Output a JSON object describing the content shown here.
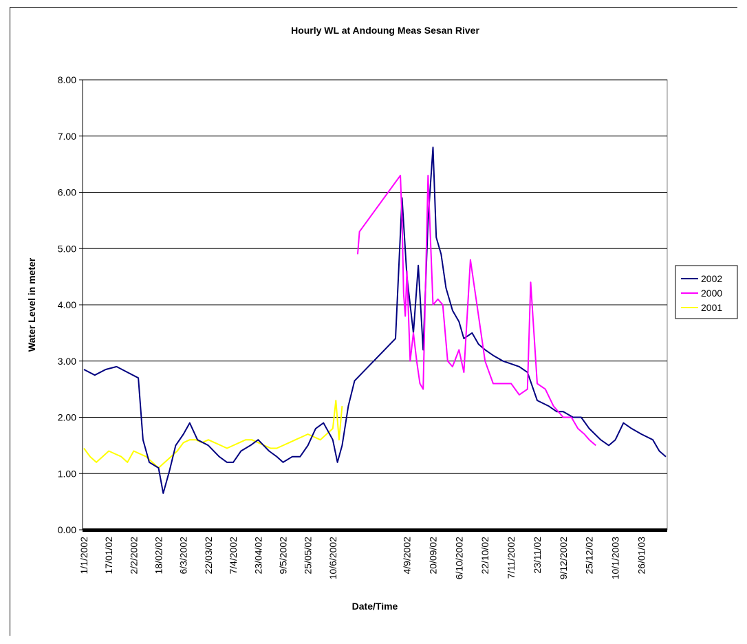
{
  "chart_data": {
    "type": "line",
    "title": "Hourly WL at Andoung Meas Sesan River",
    "xlabel": "Date/Time",
    "ylabel": "Water Level in meter",
    "ylim": [
      0,
      8
    ],
    "y_ticks": [
      "0.00",
      "1.00",
      "2.00",
      "3.00",
      "4.00",
      "5.00",
      "6.00",
      "7.00",
      "8.00"
    ],
    "x_ticks": [
      "1/1/2002",
      "17/01/02",
      "2/2/2002",
      "18/02/02",
      "6/3/2002",
      "22/03/02",
      "7/4/2002",
      "23/04/02",
      "9/5/2002",
      "25/05/02",
      "10/6/2002",
      "4/9/2002",
      "20/09/02",
      "6/10/2002",
      "22/10/02",
      "7/11/2002",
      "23/11/02",
      "9/12/2002",
      "25/12/02",
      "10/1/2003",
      "26/01/03"
    ],
    "grid": "horizontal",
    "legend_position": "right",
    "series": [
      {
        "name": "2002",
        "color": "#000080",
        "x": [
          "1/1/2002",
          "8/1/2002",
          "15/01/02",
          "22/01/02",
          "29/01/02",
          "5/2/2002",
          "8/2/2002",
          "12/2/2002",
          "18/02/02",
          "21/02/02",
          "25/02/02",
          "1/3/2002",
          "6/3/2002",
          "10/3/2002",
          "15/03/02",
          "22/03/02",
          "29/03/02",
          "3/4/2002",
          "7/4/2002",
          "12/4/2002",
          "18/04/02",
          "23/04/02",
          "30/04/02",
          "5/5/2002",
          "9/5/2002",
          "15/05/02",
          "20/05/02",
          "25/05/02",
          "30/05/02",
          "4/6/2002",
          "10/6/2002",
          "13/06/02",
          "16/06/02",
          "20/06/02",
          "24/06/02",
          "28/08/02",
          "1/9/2002",
          "4/9/2002",
          "8/9/2002",
          "11/9/2002",
          "14/09/02",
          "17/09/02",
          "20/09/02",
          "22/09/02",
          "25/09/02",
          "28/09/02",
          "2/10/2002",
          "6/10/2002",
          "9/10/2002",
          "14/10/02",
          "18/10/02",
          "22/10/02",
          "27/10/02",
          "2/11/2002",
          "7/11/2002",
          "12/11/02",
          "17/11/02",
          "23/11/02",
          "30/11/02",
          "5/12/2002",
          "9/12/2002",
          "15/12/02",
          "20/12/02",
          "25/12/02",
          "1/1/2003",
          "6/1/2003",
          "10/1/2003",
          "15/01/03",
          "20/01/03",
          "26/01/03",
          "2/2/2003",
          "6/2/2003",
          "10/2/2003"
        ],
        "values": [
          2.85,
          2.75,
          2.85,
          2.9,
          2.8,
          2.7,
          1.6,
          1.2,
          1.1,
          0.65,
          1.05,
          1.5,
          1.7,
          1.9,
          1.6,
          1.5,
          1.3,
          1.2,
          1.2,
          1.4,
          1.5,
          1.6,
          1.4,
          1.3,
          1.2,
          1.3,
          1.3,
          1.5,
          1.8,
          1.9,
          1.6,
          1.2,
          1.5,
          2.2,
          2.65,
          3.4,
          5.9,
          4.5,
          3.5,
          4.7,
          3.2,
          5.5,
          6.8,
          5.2,
          4.9,
          4.3,
          3.9,
          3.7,
          3.4,
          3.5,
          3.3,
          3.2,
          3.1,
          3.0,
          2.95,
          2.9,
          2.8,
          2.3,
          2.2,
          2.1,
          2.1,
          2.0,
          2.0,
          1.8,
          1.6,
          1.5,
          1.6,
          1.9,
          1.8,
          1.7,
          1.6,
          1.4,
          1.3
        ]
      },
      {
        "name": "2000",
        "color": "#FF00FF",
        "x": [
          "26/06/02",
          "29/06/02",
          "31/08/02",
          "1/9/2002",
          "2/9/2002",
          "3/9/2002",
          "4/9/2002",
          "6/9/2002",
          "8/9/2002",
          "10/9/2002",
          "12/9/2002",
          "14/09/02",
          "17/09/02",
          "20/09/02",
          "23/09/02",
          "26/09/02",
          "29/09/02",
          "2/10/2002",
          "6/10/2002",
          "9/10/2002",
          "13/10/02",
          "17/10/02",
          "22/10/02",
          "27/10/02",
          "2/11/2002",
          "7/11/2002",
          "12/11/02",
          "17/11/02",
          "19/11/02",
          "23/11/02",
          "28/11/02",
          "3/12/2002",
          "9/12/2002",
          "14/12/02",
          "18/12/02",
          "22/12/02",
          "25/12/02",
          "29/12/02"
        ],
        "values": [
          4.9,
          5.3,
          6.3,
          5.5,
          4.2,
          3.8,
          4.6,
          3.0,
          3.5,
          3.0,
          2.6,
          2.5,
          6.3,
          4.0,
          4.1,
          4.0,
          3.0,
          2.9,
          3.2,
          2.8,
          4.8,
          4.0,
          3.0,
          2.6,
          2.6,
          2.6,
          2.4,
          2.5,
          4.4,
          2.6,
          2.5,
          2.2,
          2.0,
          2.0,
          1.8,
          1.7,
          1.6,
          1.5
        ]
      },
      {
        "name": "2001",
        "color": "#FFFF00",
        "x": [
          "1/1/2002",
          "5/1/2002",
          "9/1/2002",
          "13/01/02",
          "17/01/02",
          "21/01/02",
          "25/01/02",
          "29/01/02",
          "2/2/2002",
          "6/2/2002",
          "10/2/2002",
          "14/02/02",
          "18/02/02",
          "22/02/02",
          "26/02/02",
          "2/3/2002",
          "6/3/2002",
          "10/3/2002",
          "14/03/02",
          "18/03/02",
          "22/03/02",
          "26/03/02",
          "30/03/02",
          "3/4/2002",
          "7/4/2002",
          "11/4/2002",
          "15/04/02",
          "19/04/02",
          "23/04/02",
          "27/04/02",
          "1/5/2002",
          "5/5/2002",
          "9/5/2002",
          "13/05/02",
          "17/05/02",
          "21/05/02",
          "25/05/02",
          "29/05/02",
          "2/6/2002",
          "6/6/2002",
          "10/6/2002",
          "12/6/2002",
          "14/06/02",
          "16/06/02"
        ],
        "values": [
          1.45,
          1.3,
          1.2,
          1.3,
          1.4,
          1.35,
          1.3,
          1.2,
          1.4,
          1.35,
          1.3,
          1.2,
          1.1,
          1.2,
          1.3,
          1.4,
          1.55,
          1.6,
          1.6,
          1.55,
          1.6,
          1.55,
          1.5,
          1.45,
          1.5,
          1.55,
          1.6,
          1.6,
          1.55,
          1.5,
          1.45,
          1.45,
          1.5,
          1.55,
          1.6,
          1.65,
          1.7,
          1.65,
          1.6,
          1.7,
          1.8,
          2.3,
          1.6,
          2.2
        ]
      }
    ]
  }
}
